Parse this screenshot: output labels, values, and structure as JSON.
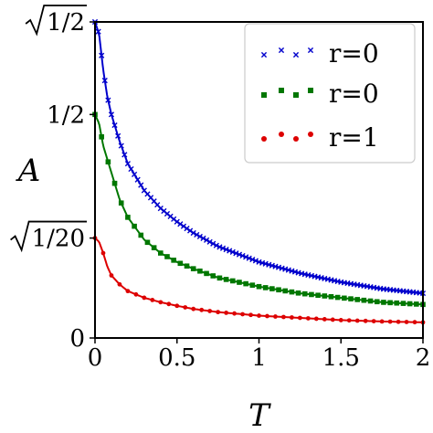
{
  "chart_data": {
    "type": "line",
    "xlabel": "T",
    "ylabel": "A",
    "xlim": [
      0,
      2
    ],
    "ylim": [
      0,
      0.7071
    ],
    "grid": false,
    "legend_position": "top-right",
    "x_ticks": [
      {
        "value": 0,
        "label": "0"
      },
      {
        "value": 0.5,
        "label": "0.5"
      },
      {
        "value": 1,
        "label": "1"
      },
      {
        "value": 1.5,
        "label": "1.5"
      },
      {
        "value": 2,
        "label": "2"
      }
    ],
    "y_ticks": [
      {
        "value": 0,
        "label": "0",
        "sqrt": false
      },
      {
        "value": 0.2236,
        "label": "1/20",
        "sqrt": true
      },
      {
        "value": 0.5,
        "label": "1/2",
        "sqrt": false
      },
      {
        "value": 0.7071,
        "label": "1/2",
        "sqrt": true
      }
    ],
    "series": [
      {
        "name": "r=0",
        "marker": "x",
        "color": "#0000cc",
        "x": [
          0.0,
          0.025,
          0.05,
          0.075,
          0.1,
          0.15,
          0.2,
          0.3,
          0.4,
          0.5,
          0.6,
          0.75,
          1.0,
          1.25,
          1.5,
          1.75,
          2.0
        ],
        "y": [
          0.7071,
          0.68,
          0.6,
          0.54,
          0.5,
          0.44,
          0.39,
          0.33,
          0.29,
          0.26,
          0.235,
          0.205,
          0.17,
          0.145,
          0.125,
          0.11,
          0.1
        ]
      },
      {
        "name": "r=0",
        "marker": "square",
        "color": "#007700",
        "x": [
          0.0,
          0.025,
          0.05,
          0.075,
          0.1,
          0.15,
          0.2,
          0.3,
          0.4,
          0.5,
          0.6,
          0.75,
          1.0,
          1.25,
          1.5,
          1.75,
          2.0
        ],
        "y": [
          0.5,
          0.48,
          0.43,
          0.4,
          0.37,
          0.31,
          0.27,
          0.22,
          0.19,
          0.17,
          0.155,
          0.135,
          0.115,
          0.1,
          0.09,
          0.08,
          0.075
        ]
      },
      {
        "name": "r=1",
        "marker": "circle",
        "color": "#dd0000",
        "x": [
          0.0,
          0.025,
          0.05,
          0.075,
          0.1,
          0.15,
          0.2,
          0.3,
          0.4,
          0.5,
          0.6,
          0.75,
          1.0,
          1.25,
          1.5,
          1.75,
          2.0
        ],
        "y": [
          0.2236,
          0.215,
          0.19,
          0.16,
          0.14,
          0.12,
          0.105,
          0.09,
          0.08,
          0.072,
          0.065,
          0.058,
          0.05,
          0.045,
          0.04,
          0.037,
          0.035
        ]
      }
    ]
  }
}
